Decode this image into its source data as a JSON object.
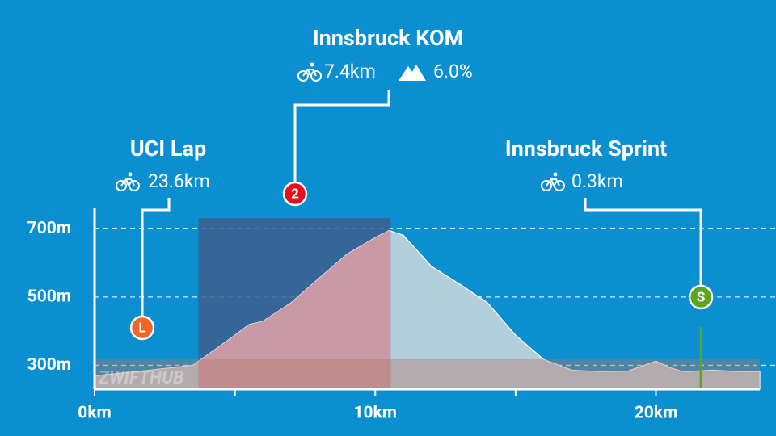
{
  "chart_data": {
    "type": "area",
    "series": [
      {
        "name": null,
        "color": "#b3cfdc",
        "x": [
          0,
          2,
          3.5,
          4,
          5,
          5.5,
          6,
          7,
          8,
          9,
          10,
          10.5,
          11,
          12,
          13,
          14,
          15,
          16,
          17,
          18,
          19,
          20,
          20.5,
          21,
          22,
          23,
          23.7
        ],
        "values": [
          269,
          286,
          300,
          329,
          388,
          419,
          429,
          483,
          555,
          626,
          674,
          695,
          681,
          590,
          538,
          483,
          388,
          317,
          286,
          281,
          283,
          312,
          293,
          281,
          286,
          281,
          281
        ]
      }
    ],
    "xlim": [
      0,
      23.7
    ],
    "ylim": [
      230,
      760
    ],
    "xticks": [
      {
        "value": 0,
        "label": "0km"
      },
      {
        "value": 10,
        "label": "10km"
      },
      {
        "value": 20,
        "label": "20km"
      }
    ],
    "xminorticks": [
      5,
      15
    ],
    "yticks": [
      {
        "value": 300,
        "label": "300m"
      },
      {
        "value": 500,
        "label": "500m"
      },
      {
        "value": 700,
        "label": "700m"
      }
    ],
    "grid": true,
    "watermark": "ZWIFTHUB",
    "annotations": [
      {
        "title": "UCI Lap",
        "distance": "23.6km",
        "badge": "L",
        "color": "#f26522",
        "x": 1.7
      },
      {
        "title": "Innsbruck KOM",
        "distance": "7.4km",
        "gradient": "6.0%",
        "badge": "2",
        "color": "#e5101d",
        "start": 3.7,
        "end": 10.55
      },
      {
        "title": "Innsbruck Sprint",
        "distance": "0.3km",
        "badge": "S",
        "color": "#5aa61e",
        "x": 21.6
      }
    ]
  }
}
